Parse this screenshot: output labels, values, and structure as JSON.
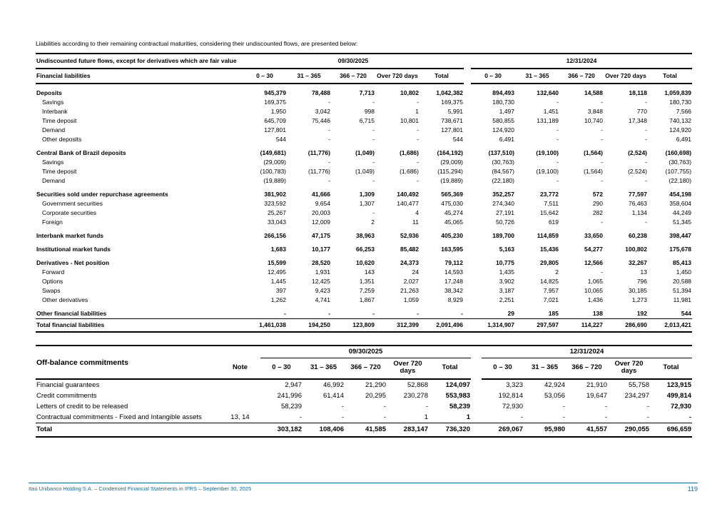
{
  "page": {
    "intro": "Liabilities according to their remaining contractual maturities, considering their undiscounted flows, are presented below:",
    "accent_color": "#1a6b9a",
    "footer_text": "Itaú Unibanco Holding S.A. – Condensed Financial Statements in IFRS – September 30, 2025",
    "page_number": "119"
  },
  "liabilities_table": {
    "title": "Undiscounted future flows, except for derivatives which are fair value",
    "row_header": "Financial liabilities",
    "period_2025": "09/30/2025",
    "period_2024": "12/31/2024",
    "columns": [
      "0 – 30",
      "31 – 365",
      "366 – 720",
      "Over 720 days",
      "Total"
    ],
    "rows": [
      {
        "label": "Deposits",
        "style": "section",
        "v": [
          "945,379",
          "78,488",
          "7,713",
          "10,802",
          "1,042,382",
          "894,493",
          "132,640",
          "14,588",
          "18,118",
          "1,059,839"
        ]
      },
      {
        "label": "Savings",
        "style": "sub",
        "v": [
          "169,375",
          "-",
          "-",
          "-",
          "169,375",
          "180,730",
          "-",
          "-",
          "-",
          "180,730"
        ]
      },
      {
        "label": "Interbank",
        "style": "sub",
        "v": [
          "1,950",
          "3,042",
          "998",
          "1",
          "5,991",
          "1,497",
          "1,451",
          "3,848",
          "770",
          "7,566"
        ]
      },
      {
        "label": "Time deposit",
        "style": "sub",
        "v": [
          "645,709",
          "75,446",
          "6,715",
          "10,801",
          "738,671",
          "580,855",
          "131,189",
          "10,740",
          "17,348",
          "740,132"
        ]
      },
      {
        "label": "Demand",
        "style": "sub",
        "v": [
          "127,801",
          "-",
          "-",
          "-",
          "127,801",
          "124,920",
          "-",
          "-",
          "-",
          "124,920"
        ]
      },
      {
        "label": "Other deposits",
        "style": "sub",
        "v": [
          "544",
          "-",
          "-",
          "-",
          "544",
          "6,491",
          "-",
          "-",
          "-",
          "6,491"
        ]
      },
      {
        "label": "Central Bank of Brazil deposits",
        "style": "section",
        "v": [
          "(149,681)",
          "(11,776)",
          "(1,049)",
          "(1,686)",
          "(164,192)",
          "(137,510)",
          "(19,100)",
          "(1,564)",
          "(2,524)",
          "(160,698)"
        ]
      },
      {
        "label": "Savings",
        "style": "sub",
        "v": [
          "(29,009)",
          "-",
          "-",
          "-",
          "(29,009)",
          "(30,763)",
          "-",
          "-",
          "-",
          "(30,763)"
        ]
      },
      {
        "label": "Time deposit",
        "style": "sub",
        "v": [
          "(100,783)",
          "(11,776)",
          "(1,049)",
          "(1,686)",
          "(115,294)",
          "(84,567)",
          "(19,100)",
          "(1,564)",
          "(2,524)",
          "(107,755)"
        ]
      },
      {
        "label": "Demand",
        "style": "sub",
        "v": [
          "(19,889)",
          "-",
          "-",
          "-",
          "(19,889)",
          "(22,180)",
          "-",
          "-",
          "-",
          "(22,180)"
        ]
      },
      {
        "label": "Securities sold under repurchase agreements",
        "style": "section",
        "v": [
          "381,902",
          "41,666",
          "1,309",
          "140,492",
          "565,369",
          "352,257",
          "23,772",
          "572",
          "77,597",
          "454,198"
        ]
      },
      {
        "label": "Government securities",
        "style": "sub",
        "v": [
          "323,592",
          "9,654",
          "1,307",
          "140,477",
          "475,030",
          "274,340",
          "7,511",
          "290",
          "76,463",
          "358,604"
        ]
      },
      {
        "label": "Corporate securities",
        "style": "sub",
        "v": [
          "25,267",
          "20,003",
          "-",
          "4",
          "45,274",
          "27,191",
          "15,642",
          "282",
          "1,134",
          "44,249"
        ]
      },
      {
        "label": "Foreign",
        "style": "sub",
        "v": [
          "33,043",
          "12,009",
          "2",
          "11",
          "45,065",
          "50,726",
          "619",
          "-",
          "-",
          "51,345"
        ]
      },
      {
        "label": "Interbank market funds",
        "style": "section",
        "v": [
          "266,156",
          "47,175",
          "38,963",
          "52,936",
          "405,230",
          "189,700",
          "114,859",
          "33,650",
          "60,238",
          "398,447"
        ]
      },
      {
        "label": "Institutional market funds",
        "style": "section",
        "v": [
          "1,683",
          "10,177",
          "66,253",
          "85,482",
          "163,595",
          "5,163",
          "15,436",
          "54,277",
          "100,802",
          "175,678"
        ]
      },
      {
        "label": "Derivatives - Net position",
        "style": "section",
        "v": [
          "15,599",
          "28,520",
          "10,620",
          "24,373",
          "79,112",
          "10,775",
          "29,805",
          "12,566",
          "32,267",
          "85,413"
        ]
      },
      {
        "label": "Forward",
        "style": "sub",
        "v": [
          "12,495",
          "1,931",
          "143",
          "24",
          "14,593",
          "1,435",
          "2",
          "-",
          "13",
          "1,450"
        ]
      },
      {
        "label": "Options",
        "style": "sub",
        "v": [
          "1,445",
          "12,425",
          "1,351",
          "2,027",
          "17,248",
          "3,902",
          "14,825",
          "1,065",
          "796",
          "20,588"
        ]
      },
      {
        "label": "Swaps",
        "style": "sub",
        "v": [
          "397",
          "9,423",
          "7,259",
          "21,263",
          "38,342",
          "3,187",
          "7,957",
          "10,065",
          "30,185",
          "51,394"
        ]
      },
      {
        "label": "Other derivatives",
        "style": "sub",
        "v": [
          "1,262",
          "4,741",
          "1,867",
          "1,059",
          "8,929",
          "2,251",
          "7,021",
          "1,436",
          "1,273",
          "11,981"
        ]
      },
      {
        "label": "Other financial liabilities",
        "style": "section",
        "v": [
          "-",
          "-",
          "-",
          "-",
          "-",
          "29",
          "185",
          "138",
          "192",
          "544"
        ]
      },
      {
        "label": "Total financial liabilities",
        "style": "total",
        "v": [
          "1,461,038",
          "194,250",
          "123,809",
          "312,399",
          "2,091,496",
          "1,314,907",
          "297,597",
          "114,227",
          "286,690",
          "2,013,421"
        ]
      }
    ]
  },
  "commitments_table": {
    "title": "Off-balance commitments",
    "note_header": "Note",
    "period_2025": "09/30/2025",
    "period_2024": "12/31/2024",
    "columns": [
      "0 – 30",
      "31 – 365",
      "366 – 720",
      "Over 720 days",
      "Total"
    ],
    "rows": [
      {
        "label": "Financial guarantees",
        "note": "",
        "style": "plain",
        "v": [
          "2,947",
          "46,992",
          "21,290",
          "52,868",
          "124,097",
          "3,323",
          "42,924",
          "21,910",
          "55,758",
          "123,915"
        ]
      },
      {
        "label": "Credit commitments",
        "note": "",
        "style": "plain",
        "v": [
          "241,996",
          "61,414",
          "20,295",
          "230,278",
          "553,983",
          "192,814",
          "53,056",
          "19,647",
          "234,297",
          "499,814"
        ]
      },
      {
        "label": "Letters of credit to be released",
        "note": "",
        "style": "plain",
        "v": [
          "58,239",
          "-",
          "-",
          "-",
          "58,239",
          "72,930",
          "-",
          "-",
          "-",
          "72,930"
        ]
      },
      {
        "label": "Contractual commitments - Fixed and Intangible assets",
        "note": "13, 14",
        "style": "plain",
        "v": [
          "-",
          "-",
          "-",
          "1",
          "1",
          "-",
          "-",
          "-",
          "-",
          "-"
        ]
      },
      {
        "label": "Total",
        "note": "",
        "style": "total",
        "v": [
          "303,182",
          "108,406",
          "41,585",
          "283,147",
          "736,320",
          "269,067",
          "95,980",
          "41,557",
          "290,055",
          "696,659"
        ]
      }
    ]
  }
}
